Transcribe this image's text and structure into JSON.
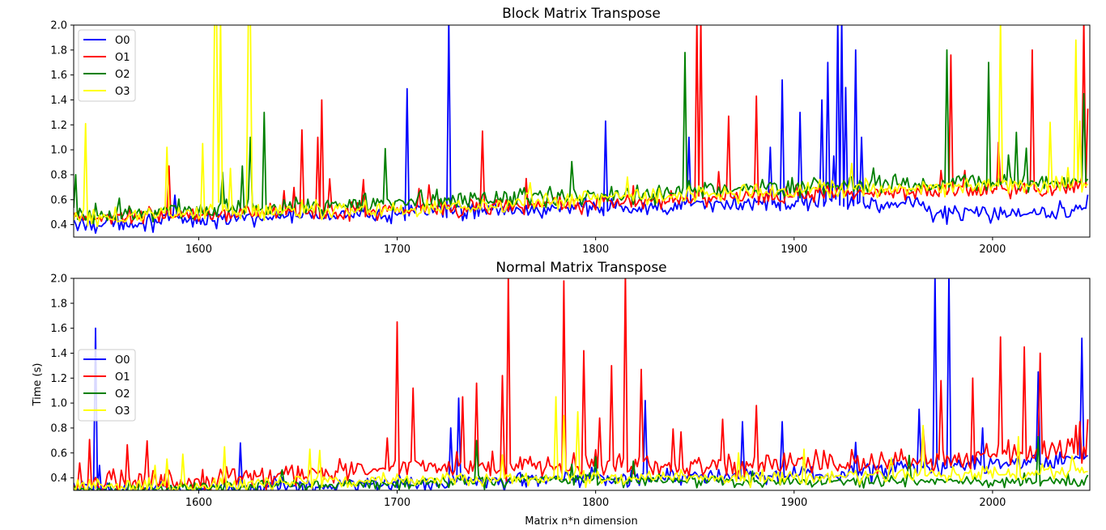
{
  "colors": {
    "O0": "#0000ff",
    "O1": "#ff0000",
    "O2": "#008000",
    "O3": "#ffff00"
  },
  "chart_data": [
    {
      "type": "line",
      "title": "Block Matrix Transpose",
      "xlabel": "",
      "ylabel": "",
      "xlim": [
        1537,
        2049
      ],
      "ylim": [
        0.3,
        2.0
      ],
      "xticks": [
        1600,
        1700,
        1800,
        1900,
        2000
      ],
      "yticks": [
        0.4,
        0.6,
        0.8,
        1.0,
        1.2,
        1.4,
        1.6,
        1.8,
        2.0
      ],
      "xtick_labels": [
        "1600",
        "1700",
        "1800",
        "1900",
        "2000"
      ],
      "ytick_labels": [
        "0.4",
        "0.6",
        "0.8",
        "1.0",
        "1.2",
        "1.4",
        "1.6",
        "1.8",
        "2.0"
      ],
      "legend_position": "top-left",
      "grid": false,
      "x": {
        "start": 1537,
        "end": 2048,
        "step": 1
      },
      "series": [
        {
          "name": "O0",
          "base": [
            [
              1537,
              0.4
            ],
            [
              1600,
              0.44
            ],
            [
              1700,
              0.5
            ],
            [
              1800,
              0.53
            ],
            [
              1900,
              0.57
            ],
            [
              1965,
              0.57
            ],
            [
              1970,
              0.48
            ],
            [
              2048,
              0.52
            ]
          ],
          "noise": 0.1,
          "spikes": [
            [
              1705,
              1.49
            ],
            [
              1726,
              2.05
            ],
            [
              1805,
              1.23
            ],
            [
              1888,
              1.02
            ],
            [
              1894,
              1.56
            ],
            [
              1903,
              1.3
            ],
            [
              1914,
              1.4
            ],
            [
              1917,
              1.7
            ],
            [
              1920,
              0.95
            ],
            [
              1922,
              2.05
            ],
            [
              1924,
              2.05
            ],
            [
              1926,
              1.5
            ],
            [
              1931,
              1.8
            ],
            [
              1934,
              1.1
            ],
            [
              1847,
              1.1
            ],
            [
              2048,
              0.64
            ]
          ]
        },
        {
          "name": "O1",
          "base": [
            [
              1537,
              0.45
            ],
            [
              1600,
              0.48
            ],
            [
              1700,
              0.52
            ],
            [
              1800,
              0.57
            ],
            [
              1900,
              0.64
            ],
            [
              2048,
              0.71
            ]
          ],
          "noise": 0.1,
          "spikes": [
            [
              1585,
              0.87
            ],
            [
              1652,
              1.16
            ],
            [
              1660,
              1.1
            ],
            [
              1662,
              1.4
            ],
            [
              1743,
              1.15
            ],
            [
              1851,
              2.05
            ],
            [
              1853,
              2.05
            ],
            [
              1867,
              1.27
            ],
            [
              1881,
              1.43
            ],
            [
              1979,
              1.76
            ],
            [
              2003,
              1.06
            ],
            [
              2020,
              1.8
            ],
            [
              2046,
              2.05
            ],
            [
              2048,
              1.33
            ]
          ]
        },
        {
          "name": "O2",
          "base": [
            [
              1537,
              0.48
            ],
            [
              1600,
              0.52
            ],
            [
              1700,
              0.58
            ],
            [
              1800,
              0.63
            ],
            [
              1900,
              0.7
            ],
            [
              2048,
              0.75
            ]
          ],
          "noise": 0.11,
          "spikes": [
            [
              1538,
              0.8
            ],
            [
              1612,
              0.82
            ],
            [
              1622,
              0.87
            ],
            [
              1626,
              1.1
            ],
            [
              1633,
              1.3
            ],
            [
              1694,
              1.01
            ],
            [
              1845,
              1.78
            ],
            [
              1977,
              1.8
            ],
            [
              1998,
              1.7
            ],
            [
              2012,
              1.14
            ],
            [
              2046,
              1.45
            ]
          ]
        },
        {
          "name": "O3",
          "base": [
            [
              1537,
              0.45
            ],
            [
              1600,
              0.5
            ],
            [
              1700,
              0.52
            ],
            [
              1800,
              0.6
            ],
            [
              1900,
              0.68
            ],
            [
              2048,
              0.72
            ]
          ],
          "noise": 0.1,
          "spikes": [
            [
              1543,
              1.21
            ],
            [
              1584,
              1.02
            ],
            [
              1602,
              1.05
            ],
            [
              1608,
              2.05
            ],
            [
              1609,
              2.05
            ],
            [
              1611,
              2.05
            ],
            [
              1616,
              0.85
            ],
            [
              1625,
              2.05
            ],
            [
              1626,
              2.05
            ],
            [
              2004,
              2.05
            ],
            [
              2029,
              1.22
            ],
            [
              2042,
              1.88
            ],
            [
              2044,
              1.23
            ]
          ]
        }
      ]
    },
    {
      "type": "line",
      "title": "Normal Matrix Transpose",
      "xlabel": "Matrix n*n dimension",
      "ylabel": "Time (s)",
      "xlim": [
        1537,
        2049
      ],
      "ylim": [
        0.3,
        2.0
      ],
      "xticks": [
        1600,
        1700,
        1800,
        1900,
        2000
      ],
      "yticks": [
        0.4,
        0.6,
        0.8,
        1.0,
        1.2,
        1.4,
        1.6,
        1.8,
        2.0
      ],
      "xtick_labels": [
        "1600",
        "1700",
        "1800",
        "1900",
        "2000"
      ],
      "ytick_labels": [
        "0.4",
        "0.6",
        "0.8",
        "1.0",
        "1.2",
        "1.4",
        "1.6",
        "1.8",
        "2.0"
      ],
      "legend_position": "center-left",
      "grid": false,
      "x": {
        "start": 1537,
        "end": 2048,
        "step": 1
      },
      "series": [
        {
          "name": "O0",
          "base": [
            [
              1537,
              0.3
            ],
            [
              1600,
              0.31
            ],
            [
              1700,
              0.35
            ],
            [
              1800,
              0.4
            ],
            [
              1900,
              0.42
            ],
            [
              2048,
              0.55
            ]
          ],
          "noise": 0.1,
          "spikes": [
            [
              1548,
              1.6
            ],
            [
              1550,
              0.5
            ],
            [
              1621,
              0.68
            ],
            [
              1727,
              0.8
            ],
            [
              1731,
              1.04
            ],
            [
              1825,
              1.02
            ],
            [
              1874,
              0.85
            ],
            [
              1894,
              0.85
            ],
            [
              1963,
              0.95
            ],
            [
              1971,
              2.05
            ],
            [
              1978,
              2.05
            ],
            [
              1995,
              0.8
            ],
            [
              2023,
              1.25
            ],
            [
              2045,
              1.52
            ]
          ]
        },
        {
          "name": "O1",
          "base": [
            [
              1537,
              0.35
            ],
            [
              1600,
              0.38
            ],
            [
              1700,
              0.48
            ],
            [
              1800,
              0.5
            ],
            [
              1900,
              0.5
            ],
            [
              2048,
              0.62
            ]
          ],
          "noise": 0.14,
          "spikes": [
            [
              1540,
              0.52
            ],
            [
              1700,
              1.65
            ],
            [
              1708,
              1.12
            ],
            [
              1733,
              1.05
            ],
            [
              1740,
              1.16
            ],
            [
              1753,
              1.22
            ],
            [
              1756,
              2.05
            ],
            [
              1784,
              1.98
            ],
            [
              1794,
              1.42
            ],
            [
              1802,
              0.88
            ],
            [
              1808,
              1.3
            ],
            [
              1815,
              2.05
            ],
            [
              1823,
              1.27
            ],
            [
              1881,
              0.98
            ],
            [
              1965,
              0.8
            ],
            [
              1974,
              1.18
            ],
            [
              1990,
              1.2
            ],
            [
              2004,
              1.53
            ],
            [
              2016,
              1.45
            ],
            [
              2024,
              1.4
            ],
            [
              2044,
              0.85
            ],
            [
              2048,
              0.87
            ]
          ]
        },
        {
          "name": "O2",
          "base": [
            [
              1537,
              0.31
            ],
            [
              1600,
              0.32
            ],
            [
              1700,
              0.36
            ],
            [
              1800,
              0.38
            ],
            [
              1900,
              0.37
            ],
            [
              2048,
              0.38
            ]
          ],
          "noise": 0.07,
          "spikes": [
            [
              1740,
              0.7
            ],
            [
              1800,
              0.57
            ],
            [
              1958,
              0.58
            ],
            [
              2023,
              0.73
            ]
          ]
        },
        {
          "name": "O3",
          "base": [
            [
              1537,
              0.32
            ],
            [
              1600,
              0.34
            ],
            [
              1700,
              0.38
            ],
            [
              1800,
              0.4
            ],
            [
              1900,
              0.4
            ],
            [
              2048,
              0.45
            ]
          ],
          "noise": 0.09,
          "spikes": [
            [
              1592,
              0.59
            ],
            [
              1613,
              0.65
            ],
            [
              1656,
              0.63
            ],
            [
              1661,
              0.62
            ],
            [
              1780,
              1.05
            ],
            [
              1784,
              0.9
            ],
            [
              1791,
              0.93
            ],
            [
              1905,
              0.63
            ],
            [
              1965,
              0.82
            ],
            [
              2013,
              0.73
            ]
          ]
        }
      ]
    }
  ]
}
